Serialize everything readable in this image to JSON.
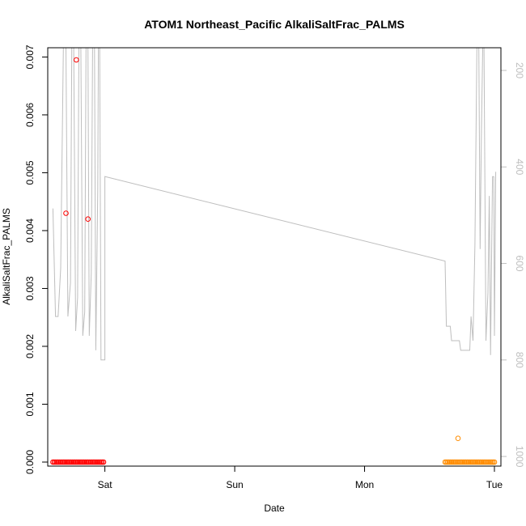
{
  "chart_data": {
    "type": "scatter",
    "title": "ATOM1 Northeast_Pacific AlkaliSaltFrac_PALMS",
    "xlabel": "Date",
    "ylabel": "AlkaliSaltFrac_PALMS",
    "x_unit": "day",
    "x_ticks": [
      {
        "label": "Sat",
        "value": 1
      },
      {
        "label": "Sun",
        "value": 2
      },
      {
        "label": "Mon",
        "value": 3
      },
      {
        "label": "Tue",
        "value": 4
      }
    ],
    "xlim": [
      0.56,
      4.05
    ],
    "ylim": [
      -7e-05,
      0.00716
    ],
    "y_ticks": [
      0.0,
      0.001,
      0.002,
      0.003,
      0.004,
      0.005,
      0.006,
      0.007
    ],
    "y_tick_labels": [
      "0.000",
      "0.001",
      "0.002",
      "0.003",
      "0.004",
      "0.005",
      "0.006",
      "0.007"
    ],
    "y2": {
      "label": "",
      "reversed": true,
      "lim": [
        1020,
        153
      ],
      "ticks": [
        200,
        400,
        600,
        800,
        1000
      ],
      "tick_labels": [
        "200",
        "400",
        "600",
        "800",
        "1000"
      ],
      "color": "#bebebe"
    },
    "grid": false,
    "legend": "none",
    "series": [
      {
        "color": "#ff0000",
        "marker": "open-circle",
        "points": [
          [
            0.6,
            0
          ],
          [
            0.61,
            0
          ],
          [
            0.62,
            0
          ],
          [
            0.63,
            0
          ],
          [
            0.64,
            0
          ],
          [
            0.65,
            0
          ],
          [
            0.66,
            0
          ],
          [
            0.67,
            0
          ],
          [
            0.68,
            0
          ],
          [
            0.69,
            0
          ],
          [
            0.7,
            0
          ],
          [
            0.71,
            0
          ],
          [
            0.72,
            0
          ],
          [
            0.73,
            0
          ],
          [
            0.74,
            0
          ],
          [
            0.75,
            0
          ],
          [
            0.76,
            0
          ],
          [
            0.77,
            0
          ],
          [
            0.78,
            0
          ],
          [
            0.79,
            0
          ],
          [
            0.8,
            0
          ],
          [
            0.81,
            0
          ],
          [
            0.82,
            0
          ],
          [
            0.83,
            0
          ],
          [
            0.84,
            0
          ],
          [
            0.85,
            0
          ],
          [
            0.86,
            0
          ],
          [
            0.87,
            0
          ],
          [
            0.88,
            0
          ],
          [
            0.89,
            0
          ],
          [
            0.9,
            0
          ],
          [
            0.91,
            0
          ],
          [
            0.92,
            0
          ],
          [
            0.93,
            0
          ],
          [
            0.94,
            0
          ],
          [
            0.95,
            0
          ],
          [
            0.96,
            0
          ],
          [
            0.97,
            0
          ],
          [
            0.98,
            0
          ],
          [
            0.99,
            0
          ],
          [
            0.7,
            0.0043
          ],
          [
            0.78,
            0.00695
          ],
          [
            0.87,
            0.0042
          ]
        ]
      },
      {
        "color": "#ff8c00",
        "marker": "open-circle",
        "points": [
          [
            3.62,
            0
          ],
          [
            3.63,
            0
          ],
          [
            3.64,
            0
          ],
          [
            3.65,
            0
          ],
          [
            3.66,
            0
          ],
          [
            3.67,
            0
          ],
          [
            3.68,
            0
          ],
          [
            3.69,
            0
          ],
          [
            3.7,
            0
          ],
          [
            3.71,
            0
          ],
          [
            3.72,
            0
          ],
          [
            3.73,
            0
          ],
          [
            3.74,
            0
          ],
          [
            3.75,
            0
          ],
          [
            3.76,
            0
          ],
          [
            3.77,
            0
          ],
          [
            3.78,
            0
          ],
          [
            3.79,
            0
          ],
          [
            3.8,
            0
          ],
          [
            3.81,
            0
          ],
          [
            3.82,
            0
          ],
          [
            3.83,
            0
          ],
          [
            3.84,
            0
          ],
          [
            3.85,
            0
          ],
          [
            3.86,
            0
          ],
          [
            3.87,
            0
          ],
          [
            3.88,
            0
          ],
          [
            3.89,
            0
          ],
          [
            3.9,
            0
          ],
          [
            3.91,
            0
          ],
          [
            3.92,
            0
          ],
          [
            3.93,
            0
          ],
          [
            3.94,
            0
          ],
          [
            3.95,
            0
          ],
          [
            3.96,
            0
          ],
          [
            3.97,
            0
          ],
          [
            3.98,
            0
          ],
          [
            3.99,
            0
          ],
          [
            4.0,
            0
          ],
          [
            3.72,
            0.00041
          ]
        ]
      }
    ],
    "secondary_line": {
      "color": "#bebebe",
      "axis": "y2",
      "points": [
        [
          0.6,
          486
        ],
        [
          0.62,
          710
        ],
        [
          0.64,
          710
        ],
        [
          0.66,
          610
        ],
        [
          0.68,
          130
        ],
        [
          0.7,
          130
        ],
        [
          0.715,
          710
        ],
        [
          0.735,
          640
        ],
        [
          0.745,
          130
        ],
        [
          0.76,
          130
        ],
        [
          0.775,
          740
        ],
        [
          0.79,
          670
        ],
        [
          0.8,
          130
        ],
        [
          0.815,
          130
        ],
        [
          0.83,
          750
        ],
        [
          0.845,
          700
        ],
        [
          0.855,
          130
        ],
        [
          0.87,
          130
        ],
        [
          0.88,
          750
        ],
        [
          0.895,
          620
        ],
        [
          0.905,
          130
        ],
        [
          0.92,
          130
        ],
        [
          0.93,
          780
        ],
        [
          0.945,
          450
        ],
        [
          0.95,
          130
        ],
        [
          0.96,
          130
        ],
        [
          0.97,
          800
        ],
        [
          1.0,
          800
        ],
        [
          1.0,
          420
        ],
        [
          3.62,
          595
        ],
        [
          3.63,
          730
        ],
        [
          3.66,
          730
        ],
        [
          3.67,
          760
        ],
        [
          3.73,
          760
        ],
        [
          3.74,
          780
        ],
        [
          3.81,
          780
        ],
        [
          3.82,
          710
        ],
        [
          3.835,
          760
        ],
        [
          3.85,
          560
        ],
        [
          3.865,
          130
        ],
        [
          3.88,
          130
        ],
        [
          3.89,
          570
        ],
        [
          3.9,
          330
        ],
        [
          3.91,
          130
        ],
        [
          3.92,
          130
        ],
        [
          3.935,
          760
        ],
        [
          3.95,
          660
        ],
        [
          3.96,
          460
        ],
        [
          3.97,
          790
        ],
        [
          3.985,
          420
        ],
        [
          3.995,
          420
        ],
        [
          4.0,
          750
        ],
        [
          4.01,
          410
        ]
      ]
    }
  }
}
